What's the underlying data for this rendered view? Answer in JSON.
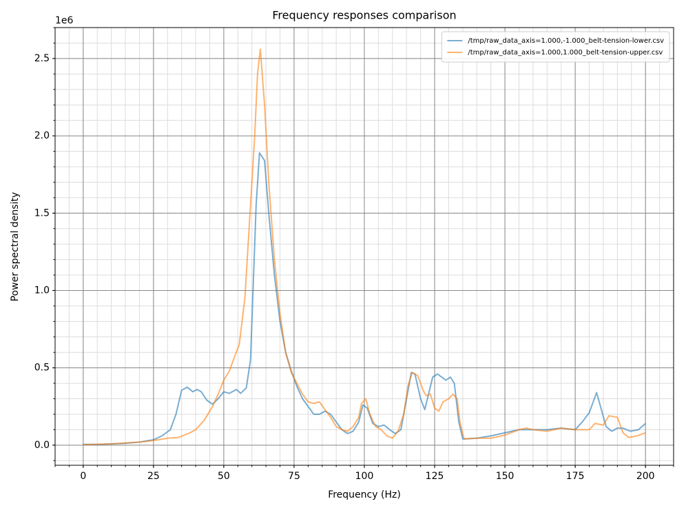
{
  "chart_data": {
    "type": "line",
    "title": "Frequency responses comparison",
    "xlabel": "Frequency (Hz)",
    "ylabel": "Power spectral density",
    "y_offset_text": "1e6",
    "xlim": [
      -10,
      210
    ],
    "ylim": [
      -0.13,
      2.7
    ],
    "xticks": [
      0,
      25,
      50,
      75,
      100,
      125,
      150,
      175,
      200
    ],
    "yticks": [
      {
        "value": 0,
        "label": "0.0"
      },
      {
        "value": 0.5,
        "label": "0.5"
      },
      {
        "value": 1,
        "label": "1.0"
      },
      {
        "value": 1.5,
        "label": "1.5"
      },
      {
        "value": 2,
        "label": "2.0"
      },
      {
        "value": 2.5,
        "label": "2.5"
      }
    ],
    "grid": true,
    "minor_grid": true,
    "x_minor_step": 5,
    "y_minor_step": 0.1,
    "legend": "upper right",
    "alpha": 0.6,
    "series": [
      {
        "name": "/tmp/raw_data_axis=1.000,-1.000_belt-tension-lower.csv",
        "color": "#1f77b4",
        "x": [
          0,
          5,
          10,
          15,
          20,
          25,
          28,
          31,
          33,
          35,
          37,
          39,
          40.5,
          42,
          44,
          46,
          48,
          50,
          52,
          54.5,
          56,
          58,
          59.5,
          61.5,
          62.7,
          64.5,
          66,
          68,
          70,
          72,
          74,
          76,
          78,
          80,
          82,
          84,
          86,
          88,
          90,
          92,
          94,
          96,
          98,
          99.5,
          101,
          103,
          105,
          107,
          109,
          111,
          113,
          115,
          116.7,
          118,
          120,
          121.5,
          124.3,
          126,
          129,
          130.6,
          132,
          133.6,
          135,
          140,
          145,
          150,
          155,
          160,
          165,
          170,
          175,
          177.5,
          180,
          182.6,
          184,
          186,
          188,
          190,
          192,
          194.6,
          197.5,
          200
        ],
        "values": [
          0.005,
          0.005,
          0.008,
          0.012,
          0.02,
          0.035,
          0.06,
          0.1,
          0.2,
          0.355,
          0.375,
          0.345,
          0.36,
          0.345,
          0.29,
          0.265,
          0.3,
          0.345,
          0.335,
          0.36,
          0.335,
          0.37,
          0.55,
          1.55,
          1.89,
          1.84,
          1.5,
          1.1,
          0.8,
          0.6,
          0.48,
          0.38,
          0.3,
          0.25,
          0.2,
          0.2,
          0.22,
          0.2,
          0.15,
          0.1,
          0.075,
          0.09,
          0.15,
          0.26,
          0.24,
          0.14,
          0.12,
          0.13,
          0.1,
          0.075,
          0.1,
          0.3,
          0.47,
          0.46,
          0.3,
          0.23,
          0.44,
          0.46,
          0.42,
          0.44,
          0.4,
          0.15,
          0.04,
          0.045,
          0.06,
          0.08,
          0.1,
          0.1,
          0.1,
          0.11,
          0.1,
          0.15,
          0.21,
          0.34,
          0.25,
          0.12,
          0.09,
          0.11,
          0.11,
          0.09,
          0.1,
          0.14
        ]
      },
      {
        "name": "/tmp/raw_data_axis=1.000,1.000_belt-tension-upper.csv",
        "color": "#ff7f0e",
        "x": [
          0,
          10,
          20,
          25,
          30,
          34,
          38,
          40,
          43,
          46,
          48,
          50,
          52,
          54,
          55.5,
          57.5,
          59,
          61,
          62,
          63,
          64.5,
          66,
          68,
          70,
          72,
          74,
          76,
          78,
          80,
          82,
          84,
          86,
          88,
          90,
          92,
          94,
          96,
          98,
          99,
          100.5,
          102,
          104,
          106,
          108,
          110,
          112,
          114,
          115.5,
          117,
          119,
          121,
          122,
          123.5,
          125,
          126.5,
          128,
          130,
          131.5,
          133,
          134,
          135.5,
          140,
          145,
          150,
          155,
          157.5,
          160,
          165,
          170,
          175,
          178,
          180,
          182,
          185,
          187,
          190,
          192,
          194,
          197,
          200
        ],
        "values": [
          0.003,
          0.008,
          0.02,
          0.03,
          0.045,
          0.05,
          0.08,
          0.1,
          0.16,
          0.25,
          0.33,
          0.42,
          0.48,
          0.58,
          0.65,
          0.95,
          1.4,
          2.0,
          2.4,
          2.56,
          2.2,
          1.7,
          1.2,
          0.85,
          0.6,
          0.47,
          0.4,
          0.33,
          0.28,
          0.27,
          0.28,
          0.23,
          0.18,
          0.12,
          0.1,
          0.09,
          0.12,
          0.18,
          0.27,
          0.3,
          0.2,
          0.12,
          0.1,
          0.06,
          0.045,
          0.09,
          0.2,
          0.38,
          0.47,
          0.45,
          0.35,
          0.32,
          0.33,
          0.24,
          0.22,
          0.28,
          0.3,
          0.33,
          0.3,
          0.15,
          0.04,
          0.045,
          0.045,
          0.065,
          0.1,
          0.11,
          0.1,
          0.09,
          0.11,
          0.1,
          0.1,
          0.1,
          0.14,
          0.13,
          0.19,
          0.18,
          0.08,
          0.05,
          0.06,
          0.08
        ]
      }
    ]
  }
}
